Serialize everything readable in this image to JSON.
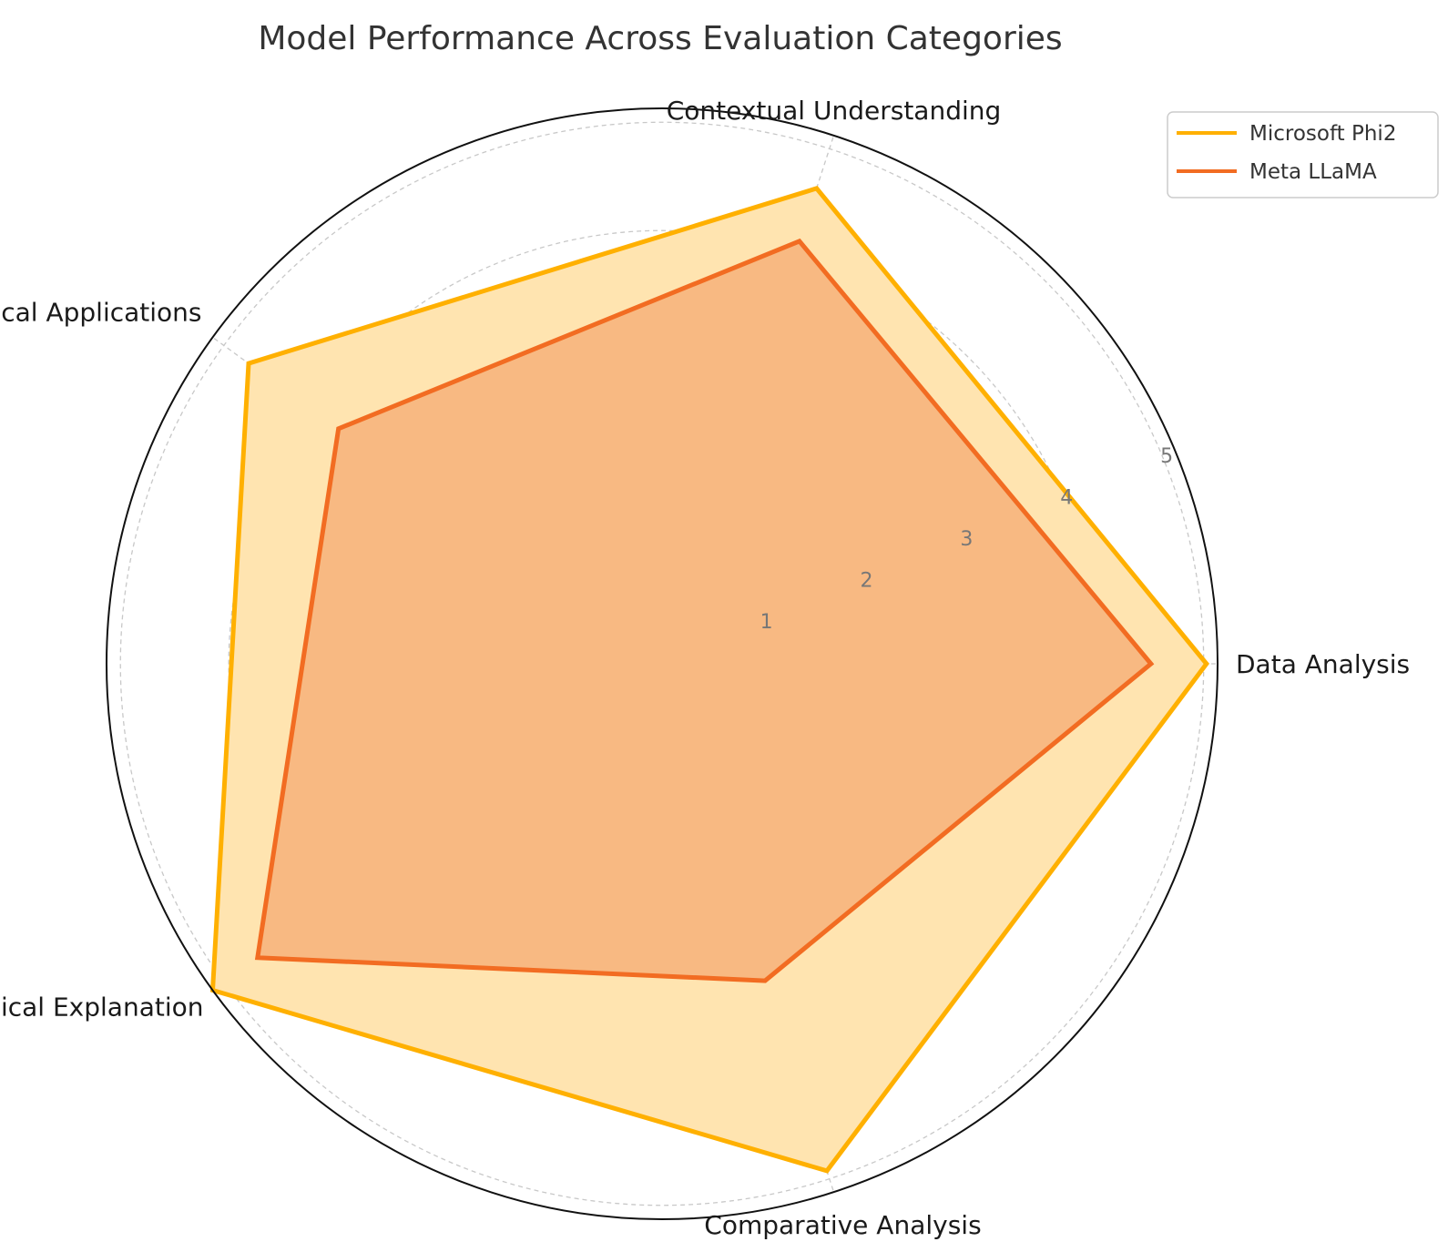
{
  "chart_data": {
    "type": "radar",
    "title": "Model Performance Across Evaluation Categories",
    "categories": [
      "Data Analysis",
      "Contextual Understanding",
      "Practical Applications",
      "Technical Explanation",
      "Comparative Analysis"
    ],
    "radial_ticks": [
      "1",
      "2",
      "3",
      "4",
      "5"
    ],
    "rlim": [
      0,
      5
    ],
    "grid": true,
    "legend_position": "top-right",
    "series": [
      {
        "name": "Microsoft Phi2",
        "values": [
          4.9,
          4.5,
          4.6,
          5.0,
          4.8
        ],
        "color": "#FFB000",
        "fill": "#FFE4B0"
      },
      {
        "name": "Meta LLaMA",
        "values": [
          4.4,
          4.0,
          3.6,
          4.5,
          3.0
        ],
        "color": "#F26C22",
        "fill": "#F7B27A"
      }
    ]
  }
}
